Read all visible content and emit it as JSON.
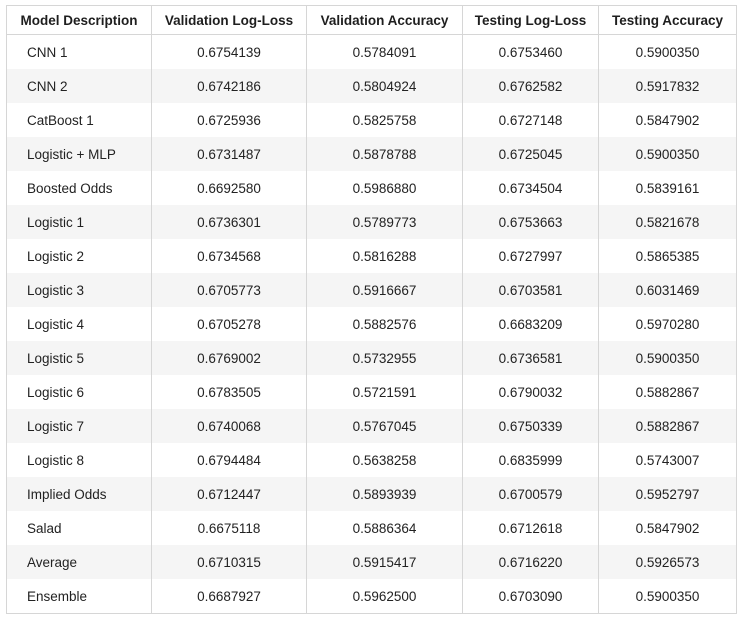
{
  "chart_data": {
    "type": "table",
    "columns": [
      "Model Description",
      "Validation Log-Loss",
      "Validation Accuracy",
      "Testing Log-Loss",
      "Testing Accuracy"
    ],
    "rows": [
      [
        "CNN 1",
        "0.6754139",
        "0.5784091",
        "0.6753460",
        "0.5900350"
      ],
      [
        "CNN 2",
        "0.6742186",
        "0.5804924",
        "0.6762582",
        "0.5917832"
      ],
      [
        "CatBoost 1",
        "0.6725936",
        "0.5825758",
        "0.6727148",
        "0.5847902"
      ],
      [
        "Logistic + MLP",
        "0.6731487",
        "0.5878788",
        "0.6725045",
        "0.5900350"
      ],
      [
        "Boosted Odds",
        "0.6692580",
        "0.5986880",
        "0.6734504",
        "0.5839161"
      ],
      [
        "Logistic 1",
        "0.6736301",
        "0.5789773",
        "0.6753663",
        "0.5821678"
      ],
      [
        "Logistic 2",
        "0.6734568",
        "0.5816288",
        "0.6727997",
        "0.5865385"
      ],
      [
        "Logistic 3",
        "0.6705773",
        "0.5916667",
        "0.6703581",
        "0.6031469"
      ],
      [
        "Logistic 4",
        "0.6705278",
        "0.5882576",
        "0.6683209",
        "0.5970280"
      ],
      [
        "Logistic 5",
        "0.6769002",
        "0.5732955",
        "0.6736581",
        "0.5900350"
      ],
      [
        "Logistic 6",
        "0.6783505",
        "0.5721591",
        "0.6790032",
        "0.5882867"
      ],
      [
        "Logistic 7",
        "0.6740068",
        "0.5767045",
        "0.6750339",
        "0.5882867"
      ],
      [
        "Logistic 8",
        "0.6794484",
        "0.5638258",
        "0.6835999",
        "0.5743007"
      ],
      [
        "Implied Odds",
        "0.6712447",
        "0.5893939",
        "0.6700579",
        "0.5952797"
      ],
      [
        "Salad",
        "0.6675118",
        "0.5886364",
        "0.6712618",
        "0.5847902"
      ],
      [
        "Average",
        "0.6710315",
        "0.5915417",
        "0.6716220",
        "0.5926573"
      ],
      [
        "Ensemble",
        "0.6687927",
        "0.5962500",
        "0.6703090",
        "0.5900350"
      ]
    ],
    "colors": {
      "row_stripe": "#f5f5f5",
      "row_plain": "#ffffff",
      "grid": "#d6d6d6",
      "text": "#222222"
    }
  }
}
